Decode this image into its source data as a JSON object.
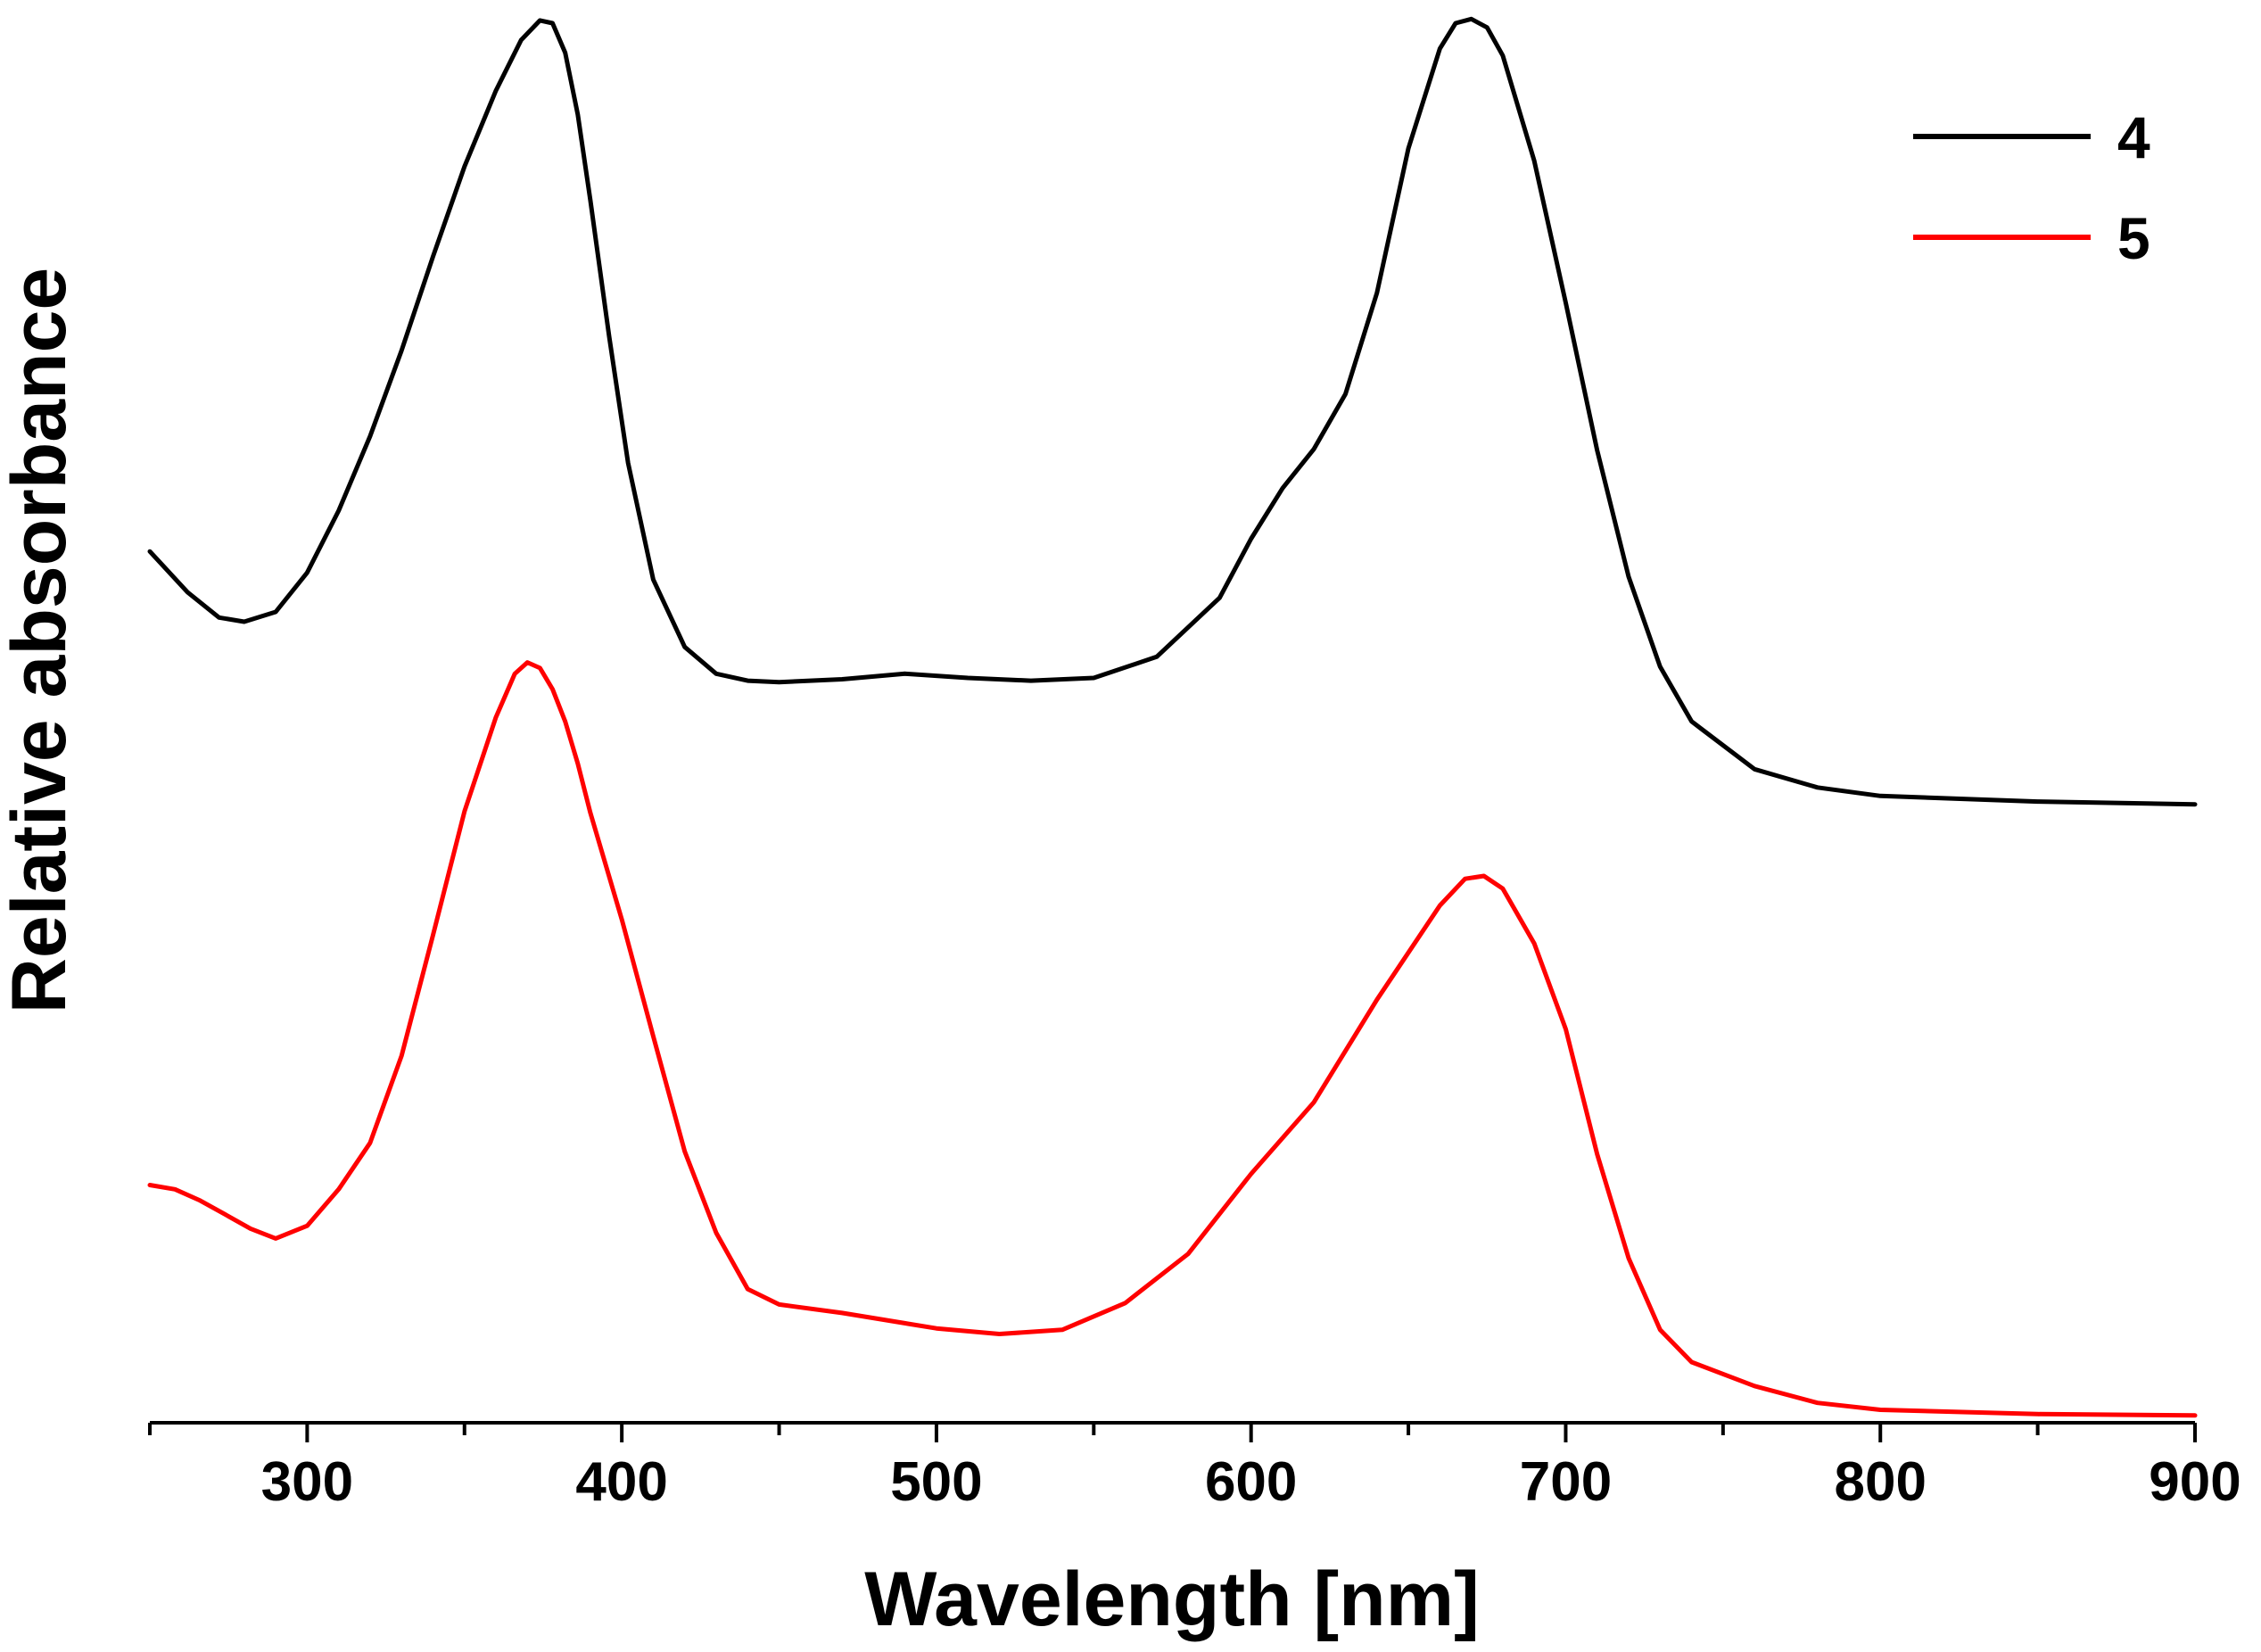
{
  "chart_data": {
    "type": "line",
    "title": "",
    "xlabel": "Wavelength [nm]",
    "ylabel": "Relative absorbance",
    "xlim": [
      250,
      900
    ],
    "ylim": [
      0,
      1
    ],
    "xticks": [
      "300",
      "400",
      "500",
      "600",
      "700",
      "800",
      "900"
    ],
    "yticks": [],
    "grid": false,
    "legend_position": "top-right",
    "series": [
      {
        "name": "4",
        "color": "#000000",
        "x": [
          250,
          262,
          272,
          280,
          290,
          300,
          310,
          320,
          330,
          340,
          350,
          360,
          368,
          374,
          378,
          382,
          386,
          390,
          396,
          402,
          410,
          420,
          430,
          440,
          450,
          470,
          490,
          510,
          530,
          550,
          570,
          590,
          600,
          610,
          620,
          630,
          640,
          650,
          660,
          665,
          670,
          675,
          680,
          690,
          700,
          710,
          720,
          730,
          740,
          760,
          780,
          800,
          850,
          900
        ],
        "y": [
          0.617,
          0.588,
          0.57,
          0.567,
          0.574,
          0.602,
          0.646,
          0.699,
          0.76,
          0.827,
          0.891,
          0.945,
          0.981,
          0.995,
          0.993,
          0.972,
          0.928,
          0.867,
          0.77,
          0.68,
          0.597,
          0.549,
          0.53,
          0.525,
          0.524,
          0.526,
          0.53,
          0.527,
          0.525,
          0.527,
          0.542,
          0.584,
          0.626,
          0.662,
          0.69,
          0.729,
          0.801,
          0.904,
          0.975,
          0.993,
          0.996,
          0.99,
          0.97,
          0.895,
          0.794,
          0.689,
          0.599,
          0.535,
          0.496,
          0.462,
          0.449,
          0.443,
          0.439,
          0.437
        ]
      },
      {
        "name": "5",
        "color": "#ff0000",
        "x": [
          250,
          258,
          266,
          274,
          282,
          290,
          300,
          310,
          320,
          330,
          340,
          350,
          360,
          366,
          370,
          374,
          378,
          382,
          386,
          390,
          400,
          410,
          420,
          430,
          440,
          450,
          470,
          500,
          520,
          540,
          560,
          580,
          600,
          620,
          640,
          660,
          668,
          674,
          680,
          690,
          700,
          710,
          720,
          730,
          740,
          760,
          780,
          800,
          850,
          900
        ],
        "y": [
          0.166,
          0.163,
          0.155,
          0.145,
          0.135,
          0.128,
          0.137,
          0.163,
          0.196,
          0.258,
          0.344,
          0.432,
          0.499,
          0.53,
          0.538,
          0.534,
          0.519,
          0.496,
          0.466,
          0.431,
          0.355,
          0.272,
          0.19,
          0.132,
          0.092,
          0.081,
          0.075,
          0.064,
          0.06,
          0.063,
          0.082,
          0.117,
          0.174,
          0.225,
          0.298,
          0.365,
          0.384,
          0.386,
          0.377,
          0.338,
          0.277,
          0.188,
          0.114,
          0.063,
          0.04,
          0.023,
          0.011,
          0.006,
          0.003,
          0.002
        ]
      }
    ]
  }
}
